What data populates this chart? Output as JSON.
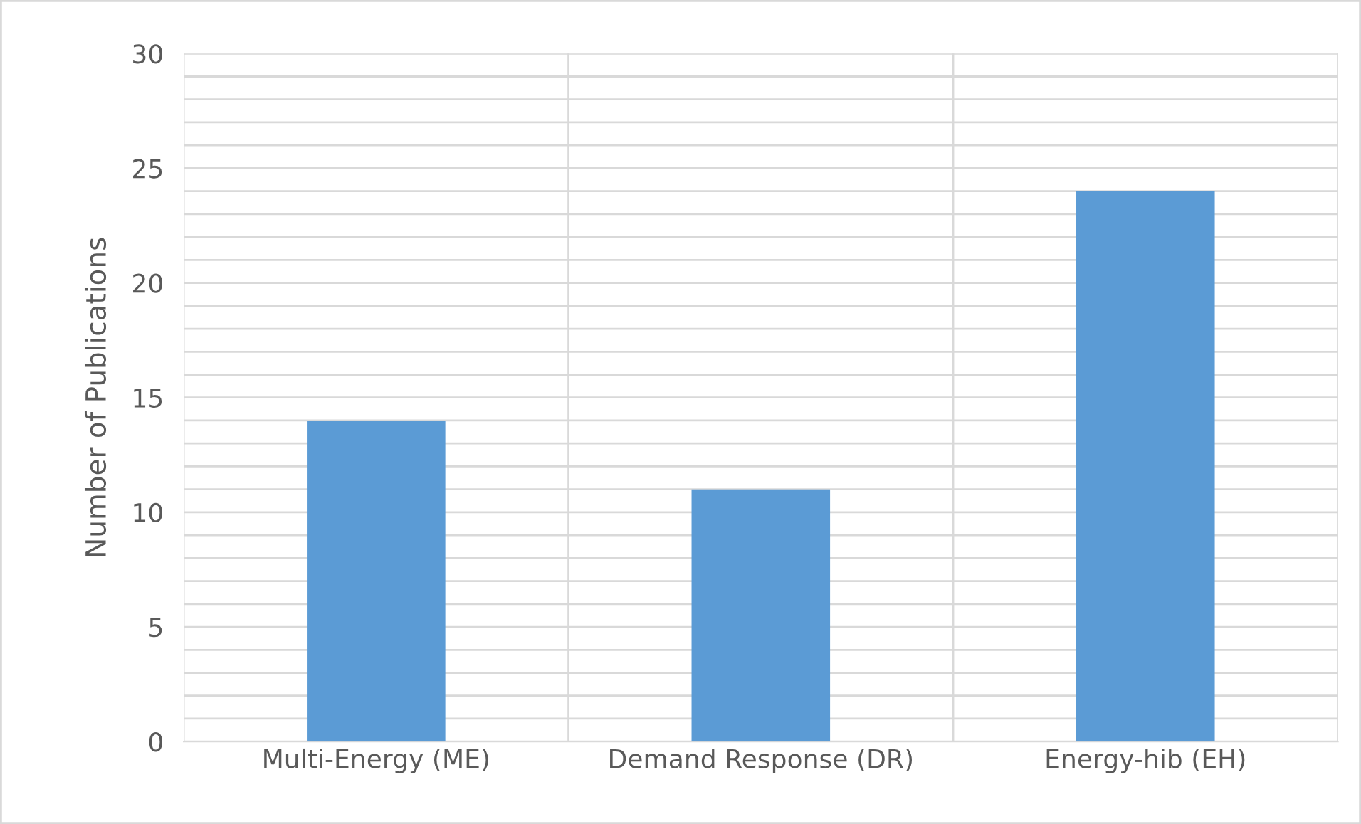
{
  "chart_data": {
    "type": "bar",
    "ylabel": "Number of Publications",
    "categories": [
      "Multi-Energy (ME)",
      "Demand Response (DR)",
      "Energy-hib (EH)"
    ],
    "values": [
      14,
      11,
      24
    ],
    "color": "#5b9bd5",
    "ylim": [
      0,
      30
    ],
    "yticks": [
      0,
      {
        "value": 1,
        "label": null
      },
      {
        "value": 2,
        "label": null
      },
      {
        "value": 3,
        "label": null
      },
      {
        "value": 4,
        "label": null
      },
      5,
      {
        "value": 6,
        "label": null
      },
      {
        "value": 7,
        "label": null
      },
      {
        "value": 8,
        "label": null
      },
      {
        "value": 9,
        "label": null
      },
      10,
      {
        "value": 11,
        "label": null
      },
      {
        "value": 12,
        "label": null
      },
      {
        "value": 13,
        "label": null
      },
      {
        "value": 14,
        "label": null
      },
      15,
      {
        "value": 16,
        "label": null
      },
      {
        "value": 17,
        "label": null
      },
      {
        "value": 18,
        "label": null
      },
      {
        "value": 19,
        "label": null
      },
      20,
      {
        "value": 21,
        "label": null
      },
      {
        "value": 22,
        "label": null
      },
      {
        "value": 23,
        "label": null
      },
      {
        "value": 24,
        "label": null
      },
      25,
      {
        "value": 26,
        "label": null
      },
      {
        "value": 27,
        "label": null
      },
      {
        "value": 28,
        "label": null
      },
      {
        "value": 29,
        "label": null
      },
      30
    ],
    "grid": true
  }
}
